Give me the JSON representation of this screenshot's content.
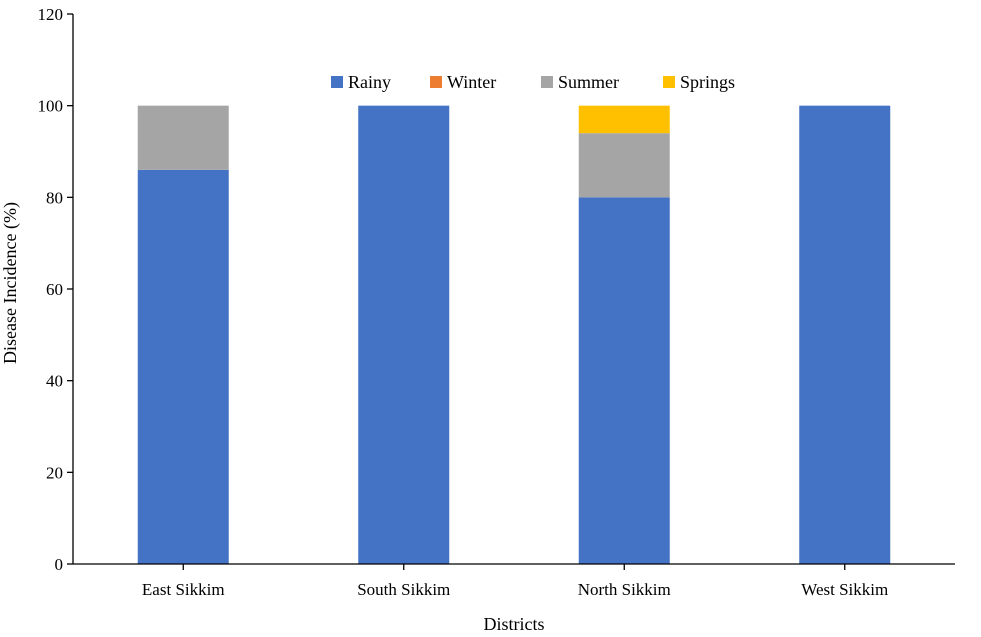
{
  "chart_data": {
    "type": "bar",
    "stacked": true,
    "categories": [
      "East Sikkim",
      "South Sikkim",
      "North Sikkim",
      "West Sikkim"
    ],
    "series": [
      {
        "name": "Rainy",
        "color": "#4472C4",
        "values": [
          86,
          100,
          80,
          100
        ]
      },
      {
        "name": "Winter",
        "color": "#ED7D31",
        "values": [
          0,
          0,
          0,
          0
        ]
      },
      {
        "name": "Summer",
        "color": "#A5A5A5",
        "values": [
          14,
          0,
          14,
          0
        ]
      },
      {
        "name": "Springs",
        "color": "#FFC000",
        "values": [
          0,
          0,
          6,
          0
        ]
      }
    ],
    "xlabel": "Districts",
    "ylabel": "Disease Incidence (%)",
    "ylim": [
      0,
      120
    ],
    "yticks": [
      0,
      20,
      40,
      60,
      80,
      100,
      120
    ],
    "grid": false,
    "legend_position": "top"
  }
}
